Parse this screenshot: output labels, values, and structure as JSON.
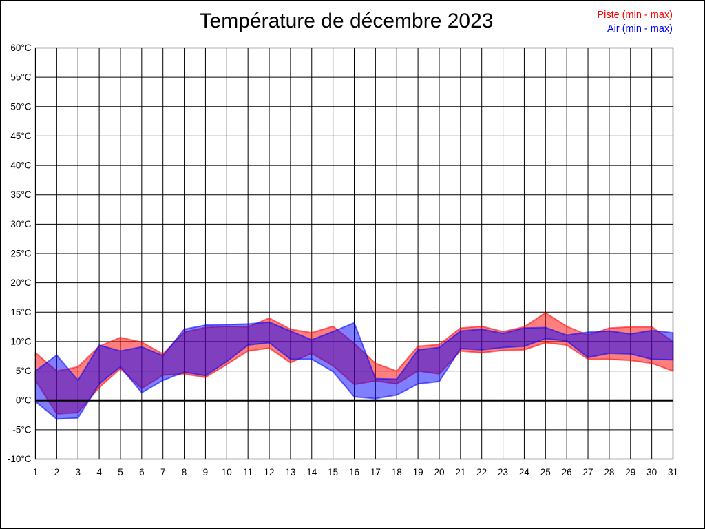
{
  "title": "Température de décembre 2023",
  "legend": [
    {
      "label": "Piste (min - max)",
      "color": "#ff0000"
    },
    {
      "label": "Air (min - max)",
      "color": "#0000ff"
    }
  ],
  "chart_data": {
    "type": "area",
    "subtype": "min-max-range-bands",
    "title": "Température de décembre 2023",
    "xlabel": "",
    "ylabel": "",
    "x": [
      1,
      2,
      3,
      4,
      5,
      6,
      7,
      8,
      9,
      10,
      11,
      12,
      13,
      14,
      15,
      16,
      17,
      18,
      19,
      20,
      21,
      22,
      23,
      24,
      25,
      26,
      27,
      28,
      29,
      30,
      31
    ],
    "xticklabels": [
      "1",
      "2",
      "3",
      "4",
      "5",
      "6",
      "7",
      "8",
      "9",
      "10",
      "11",
      "12",
      "13",
      "14",
      "15",
      "16",
      "17",
      "18",
      "19",
      "20",
      "21",
      "22",
      "23",
      "24",
      "25",
      "26",
      "27",
      "28",
      "29",
      "30",
      "31"
    ],
    "ylim": [
      -10,
      60
    ],
    "yticks": [
      60,
      55,
      50,
      45,
      40,
      35,
      30,
      25,
      20,
      15,
      10,
      5,
      0,
      -5,
      -10
    ],
    "yticklabels": [
      "60°C",
      "55°C",
      "50°C",
      "45°C",
      "40°C",
      "35°C",
      "30°C",
      "25°C",
      "20°C",
      "15°C",
      "10°C",
      "5°C",
      "0°C",
      "-5°C",
      "-10°C"
    ],
    "grid": true,
    "zero_line_at": 0,
    "legend_position": "top-right",
    "series": [
      {
        "name": "Piste (min - max)",
        "color": "#ff0000",
        "min": [
          3.4,
          -2.3,
          -2.1,
          2.2,
          5.4,
          2.0,
          4.3,
          4.5,
          3.9,
          6.1,
          8.4,
          8.9,
          6.4,
          8.0,
          5.9,
          2.7,
          3.3,
          2.8,
          5.0,
          4.5,
          8.4,
          8.1,
          8.5,
          8.6,
          9.8,
          9.4,
          7.0,
          7.0,
          6.8,
          6.3,
          5.0
        ],
        "max": [
          8.1,
          5.0,
          5.7,
          9.2,
          10.7,
          9.9,
          7.9,
          11.6,
          12.4,
          12.6,
          12.5,
          14.0,
          12.1,
          11.5,
          12.6,
          9.7,
          6.3,
          5.0,
          9.2,
          9.5,
          12.3,
          12.6,
          11.7,
          12.5,
          14.9,
          12.6,
          11.1,
          12.3,
          12.5,
          12.5,
          10.0
        ]
      },
      {
        "name": "Air (min - max)",
        "color": "#0000ff",
        "min": [
          -0.2,
          -3.2,
          -3.0,
          2.8,
          5.7,
          1.3,
          3.4,
          4.8,
          4.2,
          6.6,
          9.4,
          9.8,
          7.0,
          7.0,
          4.9,
          0.6,
          0.3,
          0.9,
          2.8,
          3.2,
          8.8,
          8.6,
          9.0,
          9.2,
          10.5,
          10.1,
          7.3,
          8.0,
          7.9,
          7.0,
          6.9
        ],
        "max": [
          5.0,
          7.7,
          3.4,
          9.4,
          8.4,
          9.1,
          7.6,
          12.1,
          12.8,
          12.9,
          13.0,
          13.3,
          11.8,
          10.3,
          11.7,
          13.2,
          3.7,
          3.6,
          8.6,
          9.0,
          11.8,
          12.1,
          11.4,
          12.3,
          12.4,
          11.1,
          11.6,
          11.8,
          11.3,
          11.9,
          11.5
        ]
      }
    ]
  }
}
